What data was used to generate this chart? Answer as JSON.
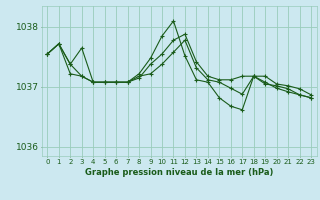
{
  "title": "Graphe pression niveau de la mer (hPa)",
  "background_color": "#cce8f0",
  "grid_color": "#99ccbb",
  "line_color": "#1a5c1a",
  "marker_color": "#1a5c1a",
  "xlim": [
    -0.5,
    23.5
  ],
  "ylim": [
    1035.85,
    1038.35
  ],
  "yticks": [
    1036,
    1037,
    1038
  ],
  "xticks": [
    0,
    1,
    2,
    3,
    4,
    5,
    6,
    7,
    8,
    9,
    10,
    11,
    12,
    13,
    14,
    15,
    16,
    17,
    18,
    19,
    20,
    21,
    22,
    23
  ],
  "series": [
    {
      "x": [
        0,
        1,
        2,
        3,
        4,
        5,
        6,
        7,
        8,
        9,
        10,
        11,
        12,
        13,
        14,
        15,
        16,
        17,
        18,
        19,
        20,
        21,
        22,
        23
      ],
      "y": [
        1037.55,
        1037.72,
        1037.38,
        1037.65,
        1037.08,
        1037.08,
        1037.08,
        1037.08,
        1037.15,
        1037.38,
        1037.55,
        1037.78,
        1037.88,
        1037.42,
        1037.18,
        1037.12,
        1037.12,
        1037.18,
        1037.18,
        1037.18,
        1037.05,
        1037.02,
        1036.97,
        1036.87
      ]
    },
    {
      "x": [
        0,
        1,
        2,
        3,
        4,
        5,
        6,
        7,
        8,
        9,
        10,
        11,
        12,
        13,
        14,
        15,
        16,
        17,
        18,
        19,
        20,
        21,
        22,
        23
      ],
      "y": [
        1037.55,
        1037.72,
        1037.22,
        1037.18,
        1037.08,
        1037.08,
        1037.08,
        1037.08,
        1037.22,
        1037.48,
        1037.85,
        1038.1,
        1037.52,
        1037.12,
        1037.08,
        1036.82,
        1036.68,
        1036.62,
        1037.18,
        1037.05,
        1037.02,
        1036.97,
        1036.87,
        1036.82
      ]
    },
    {
      "x": [
        0,
        1,
        2,
        3,
        4,
        5,
        6,
        7,
        8,
        9,
        10,
        11,
        12,
        13,
        14,
        15,
        16,
        17,
        18,
        19,
        20,
        21,
        22,
        23
      ],
      "y": [
        1037.55,
        1037.72,
        1037.38,
        1037.18,
        1037.08,
        1037.08,
        1037.08,
        1037.08,
        1037.18,
        1037.22,
        1037.38,
        1037.58,
        1037.78,
        1037.32,
        1037.12,
        1037.08,
        1036.98,
        1036.88,
        1037.18,
        1037.08,
        1036.98,
        1036.92,
        1036.87,
        1036.82
      ]
    }
  ]
}
